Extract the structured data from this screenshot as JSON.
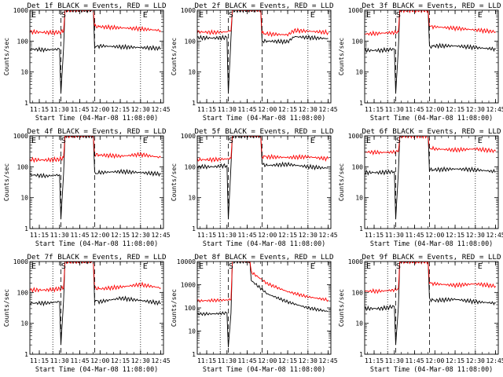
{
  "figure": {
    "xlabel": "Start Time (04-Mar-08 11:08:00)",
    "ylabel": "Counts/sec",
    "x_tick_labels": [
      "11:15",
      "11:30",
      "11:45",
      "12:00",
      "12:15",
      "12:30",
      "12:45"
    ],
    "y_tick_labels": [
      "1",
      "10",
      "100",
      "1000"
    ],
    "y_tick_labels_wide": [
      "1",
      "10",
      "100",
      "1000",
      "10000"
    ],
    "markers": {
      "start": "S",
      "end": "E",
      "left": "E"
    },
    "colors": {
      "events": "#000000",
      "lld": "#ff0000"
    }
  },
  "chart_data": [
    {
      "type": "line",
      "title": "Det 1f BLACK = Events, RED = LLD",
      "xlabel": "Start Time (04-Mar-08 11:08:00)",
      "ylabel": "Counts/sec",
      "xlim": [
        "11:08",
        "12:47"
      ],
      "ylim": [
        1,
        1000
      ],
      "yscale": "log",
      "series": [
        {
          "name": "Events",
          "color": "#000000",
          "x": [
            "11:08",
            "11:20",
            "11:30",
            "11:31",
            "11:33",
            "11:34",
            "11:55",
            "11:56",
            "12:00",
            "12:15",
            "12:30",
            "12:45"
          ],
          "values": [
            55,
            52,
            55,
            2,
            60,
            1000,
            1000,
            65,
            70,
            65,
            62,
            58
          ]
        },
        {
          "name": "LLD",
          "color": "#ff0000",
          "x": [
            "11:08",
            "11:20",
            "11:30",
            "11:33",
            "11:34",
            "11:55",
            "11:56",
            "12:00",
            "12:15",
            "12:30",
            "12:45"
          ],
          "values": [
            200,
            190,
            190,
            210,
            1000,
            1000,
            300,
            290,
            270,
            250,
            220
          ]
        }
      ]
    },
    {
      "type": "line",
      "title": "Det 2f BLACK = Events, RED = LLD",
      "xlabel": "Start Time (04-Mar-08 11:08:00)",
      "ylabel": "Counts/sec",
      "xlim": [
        "11:08",
        "12:47"
      ],
      "ylim": [
        1,
        1000
      ],
      "yscale": "log",
      "series": [
        {
          "name": "Events",
          "color": "#000000",
          "x": [
            "11:08",
            "11:20",
            "11:30",
            "11:31",
            "11:33",
            "11:34",
            "11:55",
            "11:56",
            "12:00",
            "12:15",
            "12:20",
            "12:30",
            "12:45"
          ],
          "values": [
            130,
            125,
            130,
            2,
            130,
            1000,
            1000,
            100,
            100,
            95,
            140,
            130,
            120
          ]
        },
        {
          "name": "LLD",
          "color": "#ff0000",
          "x": [
            "11:08",
            "11:20",
            "11:30",
            "11:33",
            "11:34",
            "11:55",
            "11:56",
            "12:00",
            "12:15",
            "12:20",
            "12:30",
            "12:45"
          ],
          "values": [
            200,
            190,
            200,
            220,
            1000,
            1000,
            180,
            170,
            160,
            220,
            210,
            190
          ]
        }
      ]
    },
    {
      "type": "line",
      "title": "Det 3f BLACK = Events, RED = LLD",
      "xlabel": "Start Time (04-Mar-08 11:08:00)",
      "ylabel": "Counts/sec",
      "xlim": [
        "11:08",
        "12:47"
      ],
      "ylim": [
        1,
        1000
      ],
      "yscale": "log",
      "series": [
        {
          "name": "Events",
          "color": "#000000",
          "x": [
            "11:08",
            "11:20",
            "11:30",
            "11:31",
            "11:33",
            "11:34",
            "11:55",
            "11:56",
            "12:00",
            "12:15",
            "12:30",
            "12:45"
          ],
          "values": [
            50,
            50,
            55,
            2,
            60,
            1000,
            1000,
            65,
            70,
            70,
            62,
            55
          ]
        },
        {
          "name": "LLD",
          "color": "#ff0000",
          "x": [
            "11:08",
            "11:20",
            "11:30",
            "11:33",
            "11:34",
            "11:55",
            "11:56",
            "12:00",
            "12:15",
            "12:30",
            "12:45"
          ],
          "values": [
            170,
            180,
            190,
            200,
            1000,
            1000,
            300,
            290,
            260,
            230,
            200
          ]
        }
      ]
    },
    {
      "type": "line",
      "title": "Det 4f BLACK = Events, RED = LLD",
      "xlabel": "Start Time (04-Mar-08 11:08:00)",
      "ylabel": "Counts/sec",
      "xlim": [
        "11:08",
        "12:47"
      ],
      "ylim": [
        1,
        1000
      ],
      "yscale": "log",
      "series": [
        {
          "name": "Events",
          "color": "#000000",
          "x": [
            "11:08",
            "11:20",
            "11:30",
            "11:31",
            "11:33",
            "11:34",
            "11:55",
            "11:56",
            "12:00",
            "12:15",
            "12:30",
            "12:45"
          ],
          "values": [
            55,
            50,
            55,
            2,
            60,
            1000,
            1000,
            60,
            65,
            70,
            65,
            58
          ]
        },
        {
          "name": "LLD",
          "color": "#ff0000",
          "x": [
            "11:08",
            "11:20",
            "11:30",
            "11:33",
            "11:34",
            "11:55",
            "11:56",
            "12:00",
            "12:15",
            "12:30",
            "12:45"
          ],
          "values": [
            170,
            165,
            175,
            200,
            1000,
            1000,
            250,
            240,
            220,
            250,
            200
          ]
        }
      ]
    },
    {
      "type": "line",
      "title": "Det 5f BLACK = Events, RED = LLD",
      "xlabel": "Start Time (04-Mar-08 11:08:00)",
      "ylabel": "Counts/sec",
      "xlim": [
        "11:08",
        "12:47"
      ],
      "ylim": [
        1,
        1000
      ],
      "yscale": "log",
      "series": [
        {
          "name": "Events",
          "color": "#000000",
          "x": [
            "11:08",
            "11:20",
            "11:30",
            "11:31",
            "11:33",
            "11:34",
            "11:55",
            "11:56",
            "12:00",
            "12:15",
            "12:30",
            "12:45"
          ],
          "values": [
            100,
            100,
            110,
            2,
            110,
            1000,
            1000,
            120,
            110,
            120,
            100,
            90
          ]
        },
        {
          "name": "LLD",
          "color": "#ff0000",
          "x": [
            "11:08",
            "11:20",
            "11:30",
            "11:33",
            "11:34",
            "11:55",
            "11:56",
            "12:00",
            "12:15",
            "12:30",
            "12:45"
          ],
          "values": [
            170,
            170,
            180,
            190,
            1000,
            1000,
            220,
            210,
            200,
            210,
            180
          ]
        }
      ]
    },
    {
      "type": "line",
      "title": "Det 6f BLACK = Events, RED = LLD",
      "xlabel": "Start Time (04-Mar-08 11:08:00)",
      "ylabel": "Counts/sec",
      "xlim": [
        "11:08",
        "12:47"
      ],
      "ylim": [
        1,
        1000
      ],
      "yscale": "log",
      "series": [
        {
          "name": "Events",
          "color": "#000000",
          "x": [
            "11:08",
            "11:20",
            "11:30",
            "11:31",
            "11:33",
            "11:34",
            "11:55",
            "11:56",
            "12:00",
            "12:15",
            "12:30",
            "12:45"
          ],
          "values": [
            65,
            65,
            70,
            2,
            70,
            1000,
            1000,
            80,
            80,
            85,
            80,
            70
          ]
        },
        {
          "name": "LLD",
          "color": "#ff0000",
          "x": [
            "11:08",
            "11:20",
            "11:30",
            "11:33",
            "11:34",
            "11:55",
            "11:56",
            "12:00",
            "12:15",
            "12:30",
            "12:45"
          ],
          "values": [
            300,
            290,
            300,
            320,
            1000,
            1000,
            400,
            380,
            350,
            380,
            320
          ]
        }
      ]
    },
    {
      "type": "line",
      "title": "Det 7f BLACK = Events, RED = LLD",
      "xlabel": "Start Time (04-Mar-08 11:08:00)",
      "ylabel": "Counts/sec",
      "xlim": [
        "11:08",
        "12:47"
      ],
      "ylim": [
        1,
        1000
      ],
      "yscale": "log",
      "series": [
        {
          "name": "Events",
          "color": "#000000",
          "x": [
            "11:08",
            "11:20",
            "11:30",
            "11:31",
            "11:33",
            "11:34",
            "11:55",
            "11:56",
            "12:00",
            "12:15",
            "12:30",
            "12:45"
          ],
          "values": [
            45,
            45,
            50,
            2,
            55,
            1000,
            1000,
            55,
            50,
            65,
            55,
            45
          ]
        },
        {
          "name": "LLD",
          "color": "#ff0000",
          "x": [
            "11:08",
            "11:20",
            "11:30",
            "11:33",
            "11:34",
            "11:55",
            "11:56",
            "12:00",
            "12:15",
            "12:30",
            "12:45"
          ],
          "values": [
            120,
            120,
            130,
            140,
            1000,
            1000,
            140,
            130,
            150,
            180,
            140
          ]
        }
      ]
    },
    {
      "type": "line",
      "title": "Det 8f BLACK = Events, RED = LLD",
      "xlabel": "Start Time (04-Mar-08 11:08:00)",
      "ylabel": "Counts/sec",
      "xlim": [
        "11:08",
        "12:47"
      ],
      "ylim": [
        1,
        10000
      ],
      "yscale": "log",
      "series": [
        {
          "name": "Events",
          "color": "#000000",
          "x": [
            "11:08",
            "11:20",
            "11:30",
            "11:31",
            "11:33",
            "11:34",
            "11:47",
            "11:48",
            "11:55",
            "12:00",
            "12:15",
            "12:30",
            "12:45"
          ],
          "values": [
            55,
            55,
            60,
            2,
            60,
            10000,
            10000,
            1500,
            700,
            400,
            180,
            100,
            70
          ]
        },
        {
          "name": "LLD",
          "color": "#ff0000",
          "x": [
            "11:08",
            "11:20",
            "11:30",
            "11:33",
            "11:34",
            "11:47",
            "11:48",
            "11:55",
            "12:00",
            "12:15",
            "12:30",
            "12:45"
          ],
          "values": [
            200,
            210,
            220,
            230,
            10000,
            10000,
            3500,
            1800,
            1100,
            500,
            300,
            220
          ]
        }
      ]
    },
    {
      "type": "line",
      "title": "Det 9f BLACK = Events, RED = LLD",
      "xlabel": "Start Time (04-Mar-08 11:08:00)",
      "ylabel": "Counts/sec",
      "xlim": [
        "11:08",
        "12:47"
      ],
      "ylim": [
        1,
        1000
      ],
      "yscale": "log",
      "series": [
        {
          "name": "Events",
          "color": "#000000",
          "x": [
            "11:08",
            "11:20",
            "11:30",
            "11:31",
            "11:33",
            "11:34",
            "11:55",
            "11:56",
            "12:00",
            "12:15",
            "12:30",
            "12:45"
          ],
          "values": [
            30,
            30,
            35,
            2,
            35,
            1000,
            1000,
            60,
            55,
            60,
            50,
            45
          ]
        },
        {
          "name": "LLD",
          "color": "#ff0000",
          "x": [
            "11:08",
            "11:20",
            "11:30",
            "11:33",
            "11:34",
            "11:55",
            "11:56",
            "12:00",
            "12:15",
            "12:30",
            "12:45"
          ],
          "values": [
            110,
            110,
            120,
            130,
            1000,
            1000,
            200,
            190,
            170,
            190,
            160
          ]
        }
      ]
    }
  ]
}
